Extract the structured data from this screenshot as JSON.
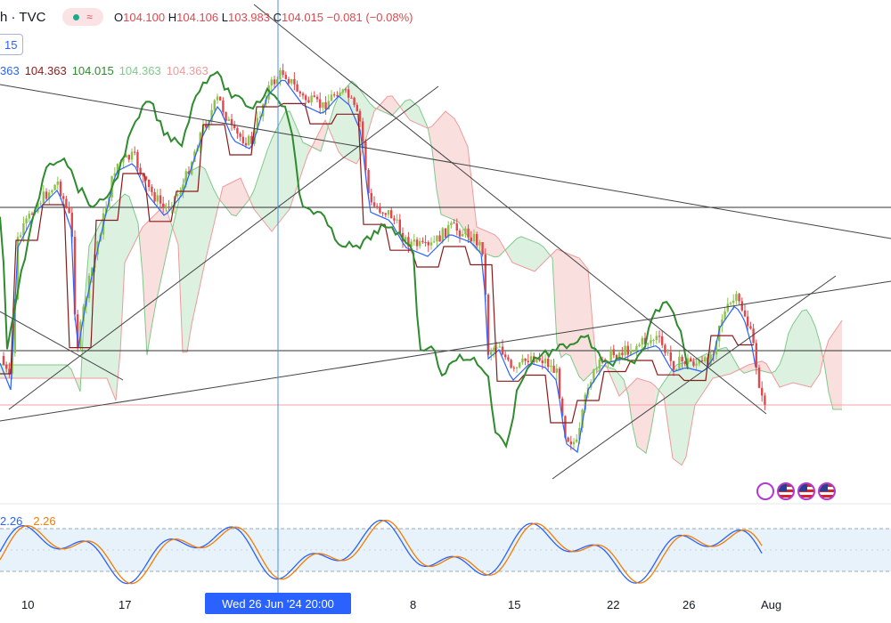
{
  "header": {
    "symbol_suffix": "h · TVC",
    "badge_icon": "wave-approx-icon",
    "ohlc": {
      "open_label": "O",
      "open": "104.100",
      "high_label": "H",
      "high": "104.106",
      "low_label": "L",
      "low": "103.983",
      "close_label": "C",
      "close": "104.015",
      "change": "−0.081 (−0.08%)"
    },
    "interval_tag": "15"
  },
  "ichimoku_values": [
    {
      "text": "363",
      "color": "#2962ff"
    },
    {
      "text": "104.363",
      "color": "#8b1a1a"
    },
    {
      "text": "104.015",
      "color": "#2e8b2e"
    },
    {
      "text": "104.363",
      "color": "#7fc98a"
    },
    {
      "text": "104.363",
      "color": "#ef9a9a"
    }
  ],
  "stoch_values": [
    {
      "text": "2.26",
      "color": "#2962ff"
    },
    {
      "text": "2.26",
      "color": "#f57c00"
    }
  ],
  "cursor_label": "Wed 26 Jun '24   20:00",
  "x_labels": [
    {
      "text": "10",
      "x": 32
    },
    {
      "text": "17",
      "x": 141
    },
    {
      "text": "8",
      "x": 468
    },
    {
      "text": "15",
      "x": 578
    },
    {
      "text": "22",
      "x": 689
    },
    {
      "text": "26",
      "x": 774
    },
    {
      "text": "Aug",
      "x": 862
    }
  ],
  "chart_data": {
    "type": "candlestick",
    "indicators": [
      "Ichimoku Cloud",
      "Stochastic"
    ],
    "x_ticks": [
      "10",
      "17",
      "8",
      "15",
      "22",
      "26",
      "Aug"
    ],
    "ohlc_last": {
      "open": 104.1,
      "high": 104.106,
      "low": 103.983,
      "close": 104.015
    },
    "colors": {
      "up": "#8bc34a",
      "down": "#e0484d",
      "conversion": "#2962ff",
      "base": "#8b1a1a",
      "lagging": "#2e8b2e",
      "cloud_up": "#cdebd3",
      "cloud_down": "#f8d2d2",
      "stoch_k": "#2962ff",
      "stoch_d": "#f57c00"
    },
    "stochastic_band": [
      20,
      80
    ]
  }
}
